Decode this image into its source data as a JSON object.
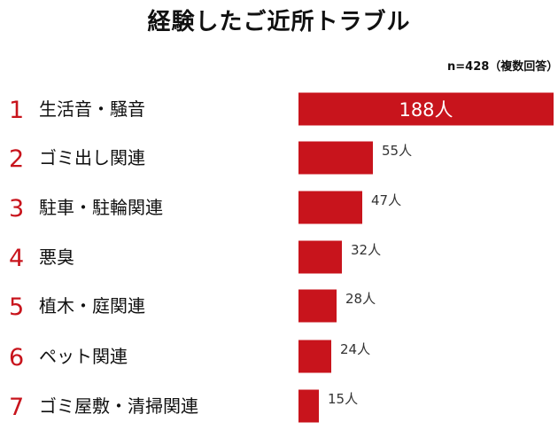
{
  "title": "経験したご近所トラブル",
  "note": "n=428（複数回答）",
  "unit": "人",
  "colors": {
    "bar": "#c8141c",
    "rank": "#c8141c"
  },
  "chart_data": {
    "type": "bar",
    "orientation": "horizontal",
    "ranks": [
      "1",
      "2",
      "3",
      "4",
      "5",
      "6",
      "7"
    ],
    "categories": [
      "生活音・騒音",
      "ゴミ出し関連",
      "駐車・駐輪関連",
      "悪臭",
      "植木・庭関連",
      "ペット関連",
      "ゴミ屋敷・清掃関連"
    ],
    "values": [
      188,
      55,
      47,
      32,
      28,
      24,
      15
    ],
    "value_labels": [
      "188人",
      "55人",
      "47人",
      "32人",
      "28人",
      "24人",
      "15人"
    ],
    "xlim": [
      0,
      188
    ],
    "grid": false,
    "legend": "none"
  }
}
